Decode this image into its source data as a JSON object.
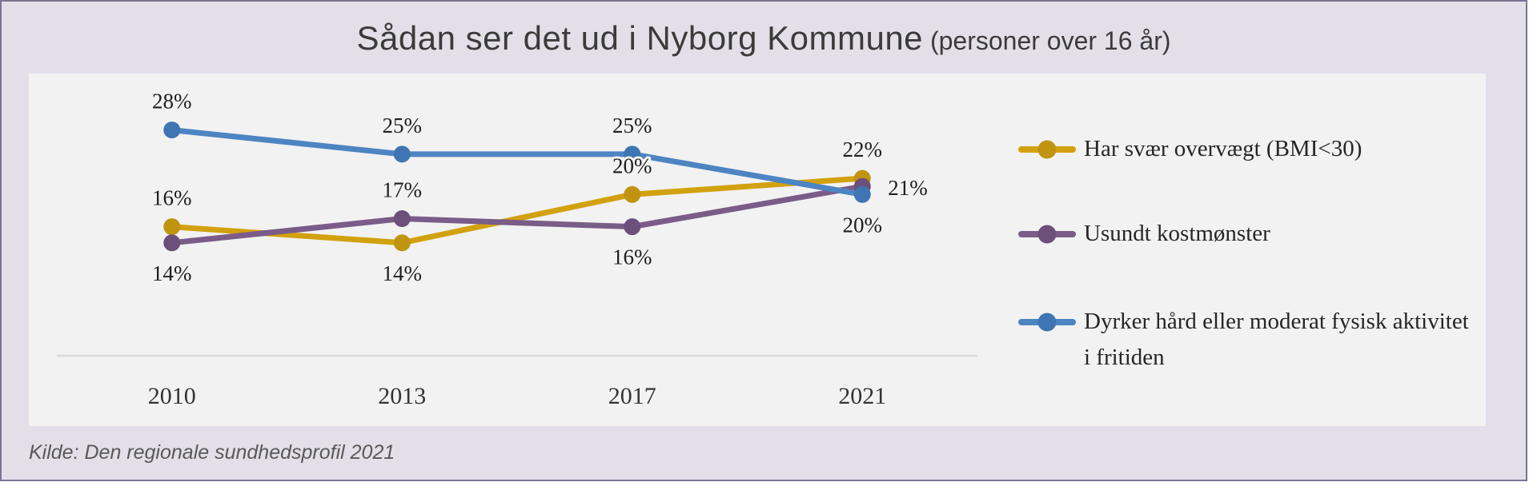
{
  "header": {
    "title_main": "Sådan ser det ud i Nyborg Kommune",
    "title_suffix": " (personer over 16 år)"
  },
  "footer": {
    "source": "Kilde: Den regionale sundhedsprofil 2021"
  },
  "colors": {
    "panel_bg": "#e2dfe9",
    "panel_border": "#7c7492",
    "card_bg": "#f2f2f2",
    "axis_line": "#d9d9d9",
    "title_text": "#3b3b3b",
    "data_label_text": "#1f1f1f",
    "source_text": "#595959"
  },
  "chart_data": {
    "type": "line",
    "title": "Sådan ser det ud i Nyborg Kommune (personer over 16 år)",
    "categories": [
      "2010",
      "2013",
      "2017",
      "2021"
    ],
    "series": [
      {
        "name": "Har svær overvægt (BMI<30)",
        "color": "#D2A10E",
        "marker_color": "#C09410",
        "values": [
          16,
          14,
          20,
          22
        ],
        "data_labels": [
          "16%",
          "14%",
          "20%",
          "22%"
        ],
        "label_positions": [
          "above",
          "below",
          "above",
          "above"
        ]
      },
      {
        "name": "Usundt kostmønster",
        "color": "#7A5C88",
        "marker_color": "#6C4F7B",
        "values": [
          14,
          17,
          16,
          21
        ],
        "data_labels": [
          "14%",
          "17%",
          "16%",
          "21%"
        ],
        "label_positions": [
          "below",
          "above",
          "below",
          "right"
        ]
      },
      {
        "name": "Dyrker hård eller moderat fysisk aktivitet i fritiden",
        "color": "#4D84C2",
        "marker_color": "#3E75B2",
        "values": [
          28,
          25,
          25,
          20
        ],
        "data_labels": [
          "28%",
          "25%",
          "25%",
          "20%"
        ],
        "label_positions": [
          "above",
          "above",
          "above",
          "below"
        ]
      }
    ],
    "xlabel": "",
    "ylabel": "",
    "ylim": [
      0,
      35
    ],
    "grid": false,
    "legend_position": "right",
    "data_label_format": "{v}%"
  }
}
